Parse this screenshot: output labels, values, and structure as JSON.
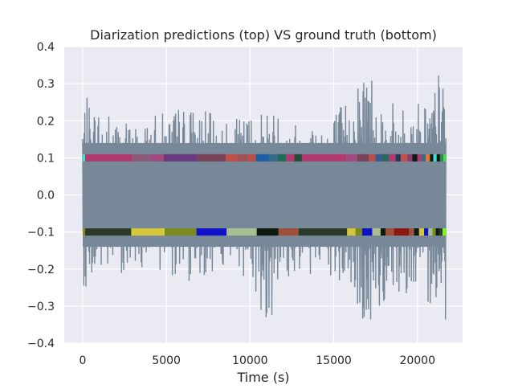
{
  "chart_data": {
    "type": "line",
    "title": "Diarization predictions (top)  VS ground truth (bottom)",
    "xlabel": "Time (s)",
    "ylabel": "",
    "xlim": [
      -1100,
      22700
    ],
    "ylim": [
      -0.4,
      0.4
    ],
    "x_ticks": [
      0,
      5000,
      10000,
      15000,
      20000
    ],
    "x_tick_labels": [
      "0",
      "5000",
      "10000",
      "15000",
      "20000"
    ],
    "y_ticks": [
      -0.4,
      -0.3,
      -0.2,
      -0.1,
      0.0,
      0.1,
      0.2,
      0.3,
      0.4
    ],
    "y_tick_labels": [
      "−0.4",
      "−0.3",
      "−0.2",
      "−0.1",
      "0.0",
      "0.1",
      "0.2",
      "0.3",
      "0.4"
    ],
    "grid": true,
    "waveform": {
      "color": "#778899",
      "x_range": [
        0,
        21700
      ],
      "envelope_x": [
        0,
        1000,
        2000,
        3000,
        4000,
        5000,
        6000,
        7000,
        8000,
        9000,
        10000,
        11000,
        12000,
        13000,
        14000,
        15000,
        16000,
        17000,
        18000,
        19000,
        20000,
        21000,
        21700
      ],
      "envelope_max": [
        0.27,
        0.25,
        0.22,
        0.2,
        0.21,
        0.23,
        0.25,
        0.24,
        0.21,
        0.2,
        0.23,
        0.25,
        0.22,
        0.2,
        0.22,
        0.24,
        0.27,
        0.4,
        0.26,
        0.24,
        0.26,
        0.3,
        0.4
      ],
      "envelope_min": [
        -0.25,
        -0.24,
        -0.22,
        -0.2,
        -0.2,
        -0.21,
        -0.24,
        -0.23,
        -0.2,
        -0.2,
        -0.24,
        -0.36,
        -0.25,
        -0.22,
        -0.23,
        -0.25,
        -0.27,
        -0.4,
        -0.3,
        -0.26,
        -0.28,
        -0.3,
        -0.34
      ]
    },
    "prediction_segments": {
      "y": 0.1,
      "segments": [
        {
          "start": 0,
          "end": 150,
          "color": "#40E0D0"
        },
        {
          "start": 150,
          "end": 2950,
          "color": "#B03A6E"
        },
        {
          "start": 2950,
          "end": 4050,
          "color": "#8A5A78"
        },
        {
          "start": 4050,
          "end": 4850,
          "color": "#A04A80"
        },
        {
          "start": 4850,
          "end": 6850,
          "color": "#6A3A80"
        },
        {
          "start": 6850,
          "end": 8550,
          "color": "#7A4258"
        },
        {
          "start": 8550,
          "end": 9250,
          "color": "#C05048"
        },
        {
          "start": 9250,
          "end": 9850,
          "color": "#A05058"
        },
        {
          "start": 9850,
          "end": 10350,
          "color": "#B85048"
        },
        {
          "start": 10350,
          "end": 11150,
          "color": "#1F5FA8"
        },
        {
          "start": 11150,
          "end": 11650,
          "color": "#3A6A8A"
        },
        {
          "start": 11650,
          "end": 12150,
          "color": "#1E6E54"
        },
        {
          "start": 12150,
          "end": 12650,
          "color": "#B03A6E"
        },
        {
          "start": 12650,
          "end": 13100,
          "color": "#2A4A3A"
        },
        {
          "start": 13100,
          "end": 15750,
          "color": "#B03A6E"
        },
        {
          "start": 15750,
          "end": 16400,
          "color": "#A04A80"
        },
        {
          "start": 16400,
          "end": 17100,
          "color": "#7A4258"
        },
        {
          "start": 17100,
          "end": 17500,
          "color": "#B85048"
        },
        {
          "start": 17500,
          "end": 17900,
          "color": "#3A5A90"
        },
        {
          "start": 17900,
          "end": 18300,
          "color": "#2A6A5A"
        },
        {
          "start": 18300,
          "end": 18700,
          "color": "#B03A6E"
        },
        {
          "start": 18700,
          "end": 19000,
          "color": "#223A5A"
        },
        {
          "start": 19000,
          "end": 19400,
          "color": "#C05048"
        },
        {
          "start": 19400,
          "end": 19700,
          "color": "#8A3A70"
        },
        {
          "start": 19700,
          "end": 20000,
          "color": "#101810"
        },
        {
          "start": 20000,
          "end": 20250,
          "color": "#B03A6E"
        },
        {
          "start": 20250,
          "end": 20500,
          "color": "#3A6A8A"
        },
        {
          "start": 20500,
          "end": 20750,
          "color": "#E07A30"
        },
        {
          "start": 20750,
          "end": 20950,
          "color": "#101810"
        },
        {
          "start": 20950,
          "end": 21150,
          "color": "#40E0D0"
        },
        {
          "start": 21150,
          "end": 21350,
          "color": "#101810"
        },
        {
          "start": 21350,
          "end": 21550,
          "color": "#2E8B57"
        },
        {
          "start": 21550,
          "end": 21700,
          "color": "#40E040"
        }
      ]
    },
    "ground_truth_segments": {
      "y": -0.1,
      "segments": [
        {
          "start": 0,
          "end": 150,
          "color": "#8A8A20"
        },
        {
          "start": 150,
          "end": 2900,
          "color": "#2A3A2A"
        },
        {
          "start": 2900,
          "end": 4900,
          "color": "#D4C83A"
        },
        {
          "start": 4900,
          "end": 6800,
          "color": "#7A8A1E"
        },
        {
          "start": 6800,
          "end": 8600,
          "color": "#1010C8"
        },
        {
          "start": 8600,
          "end": 10400,
          "color": "#A8C090"
        },
        {
          "start": 10400,
          "end": 11700,
          "color": "#0E1A0E"
        },
        {
          "start": 11700,
          "end": 12900,
          "color": "#A0503A"
        },
        {
          "start": 12900,
          "end": 15800,
          "color": "#2A3A2A"
        },
        {
          "start": 15800,
          "end": 16300,
          "color": "#D4C83A"
        },
        {
          "start": 16300,
          "end": 16700,
          "color": "#7A8A1E"
        },
        {
          "start": 16700,
          "end": 17300,
          "color": "#1010C8"
        },
        {
          "start": 17300,
          "end": 17800,
          "color": "#A8C090"
        },
        {
          "start": 17800,
          "end": 18100,
          "color": "#0E1A0E"
        },
        {
          "start": 18100,
          "end": 18600,
          "color": "#A0503A"
        },
        {
          "start": 18600,
          "end": 19500,
          "color": "#8A1A10"
        },
        {
          "start": 19500,
          "end": 19800,
          "color": "#A0503A"
        },
        {
          "start": 19800,
          "end": 20100,
          "color": "#0E1A0E"
        },
        {
          "start": 20100,
          "end": 20400,
          "color": "#D4C83A"
        },
        {
          "start": 20400,
          "end": 20650,
          "color": "#1010C8"
        },
        {
          "start": 20650,
          "end": 20900,
          "color": "#A8C090"
        },
        {
          "start": 20900,
          "end": 21100,
          "color": "#7A8A1E"
        },
        {
          "start": 21100,
          "end": 21300,
          "color": "#0E1A0E"
        },
        {
          "start": 21300,
          "end": 21500,
          "color": "#2A3A2A"
        },
        {
          "start": 21500,
          "end": 21700,
          "color": "#7CFC00"
        }
      ]
    }
  }
}
